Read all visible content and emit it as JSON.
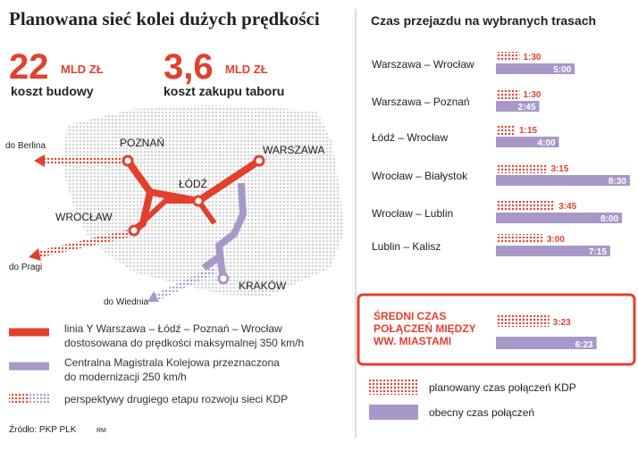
{
  "header": {
    "title": "Planowana sieć kolei dużych prędkości"
  },
  "stats": [
    {
      "value": "22",
      "unit": "MLD ZŁ",
      "label": "koszt budowy"
    },
    {
      "value": "3,6",
      "unit": "MLD ZŁ",
      "label": "koszt zakupu taboru"
    }
  ],
  "map": {
    "cities": [
      "POZNAŃ",
      "WARSZAWA",
      "ŁÓDŹ",
      "WROCŁAW",
      "KRAKÓW"
    ],
    "directions": [
      "do Berlina",
      "do Pragi",
      "do Wiednia"
    ],
    "legend": [
      {
        "lines": [
          "linia Y Warszawa – Łódź – Poznań – Wrocław",
          "dostosowana do prędkości maksymalnej 350 km/h"
        ]
      },
      {
        "lines": [
          "Centralna Magistrala Kolejowa przeznaczona",
          "do modernizacji 250 km/h"
        ]
      },
      {
        "lines": [
          "perspektywy drugiego etapu rozwoju sieci KDP"
        ]
      }
    ]
  },
  "source": "Źródło: PKP PLK",
  "author": "RM",
  "chart_data": {
    "type": "bar",
    "title": "Czas przejazdu na wybranych trasach",
    "categories": [
      "Warszawa – Wrocław",
      "Warszawa – Poznań",
      "Łódź – Wrocław",
      "Wrocław – Białystok",
      "Wrocław – Lublin",
      "Lublin – Kalisz"
    ],
    "series": [
      {
        "name": "planowany czas połączeń KDP",
        "color": "#e2402f",
        "values": [
          90,
          90,
          75,
          195,
          225,
          180
        ],
        "value_labels": [
          "1:30",
          "1:30",
          "1:15",
          "3:15",
          "3:45",
          "3:00"
        ]
      },
      {
        "name": "obecny czas połączeń",
        "color": "#a898c8",
        "values": [
          300,
          165,
          240,
          510,
          480,
          435
        ],
        "value_labels": [
          "5:00",
          "2:45",
          "4:00",
          "8:30",
          "8:00",
          "7:15"
        ]
      }
    ],
    "average": {
      "label": [
        "ŚREDNI CZAS",
        "POŁĄCZEŃ MIĘDZY",
        "WW. MIASTAMI"
      ],
      "values": [
        203,
        383
      ],
      "value_labels": [
        "3:23",
        "6:23"
      ]
    }
  }
}
